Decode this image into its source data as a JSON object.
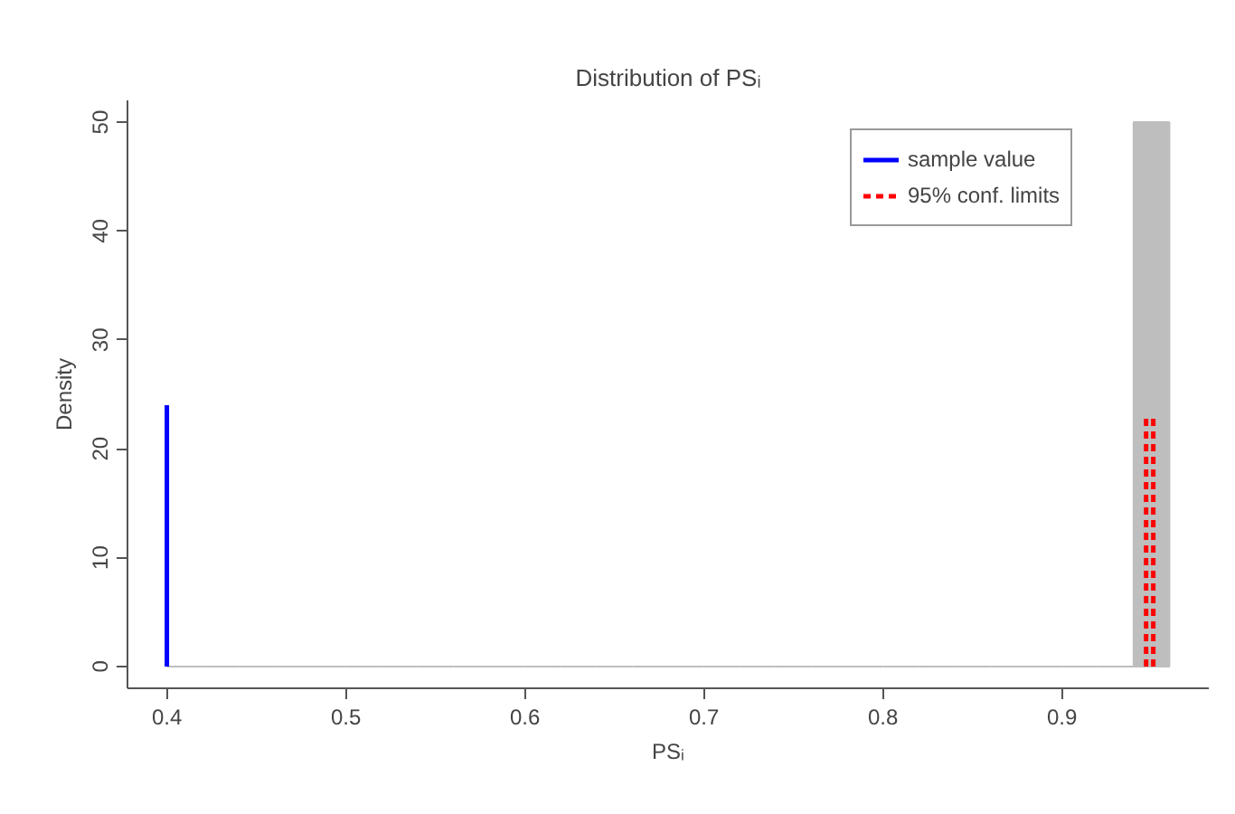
{
  "chart_data": {
    "type": "histogram",
    "title": "Distribution of PSᵢ",
    "xlabel": "PSᵢ",
    "ylabel": "Density",
    "xlim": [
      0.378,
      0.982
    ],
    "ylim": [
      -2,
      52
    ],
    "xticks": [
      0.4,
      0.5,
      0.6,
      0.7,
      0.8,
      0.9
    ],
    "yticks": [
      0,
      10,
      20,
      30,
      40,
      50
    ],
    "grid": false,
    "legend": "top right",
    "series": [
      {
        "color": "#bebebe",
        "bins": [
          0.4,
          0.42,
          0.44,
          0.46,
          0.48,
          0.5,
          0.52,
          0.54,
          0.56,
          0.58,
          0.6,
          0.62,
          0.64,
          0.66,
          0.68,
          0.7,
          0.72,
          0.74,
          0.76,
          0.78,
          0.8,
          0.82,
          0.84,
          0.86,
          0.88,
          0.9,
          0.92,
          0.94,
          0.96
        ],
        "values": [
          0,
          0,
          0,
          0,
          0,
          0,
          0,
          0,
          0,
          0,
          0,
          0,
          0,
          0,
          0,
          0,
          0,
          0,
          0,
          0,
          0,
          0,
          0,
          0,
          0,
          0,
          0,
          50
        ]
      },
      {
        "type": "line",
        "name": "sample value",
        "color": "#0000ff",
        "line_style": "solid",
        "x": [
          0.4,
          0.4
        ],
        "values": [
          0,
          24
        ]
      },
      {
        "type": "line",
        "name": "95% conf. limits",
        "color": "#ff0000",
        "line_style": "dashed",
        "x": [
          0.947,
          0.947
        ],
        "values": [
          0,
          23
        ]
      },
      {
        "type": "line",
        "color": "#ff0000",
        "line_style": "dashed",
        "x": [
          0.951,
          0.951
        ],
        "values": [
          0,
          23
        ]
      }
    ]
  }
}
